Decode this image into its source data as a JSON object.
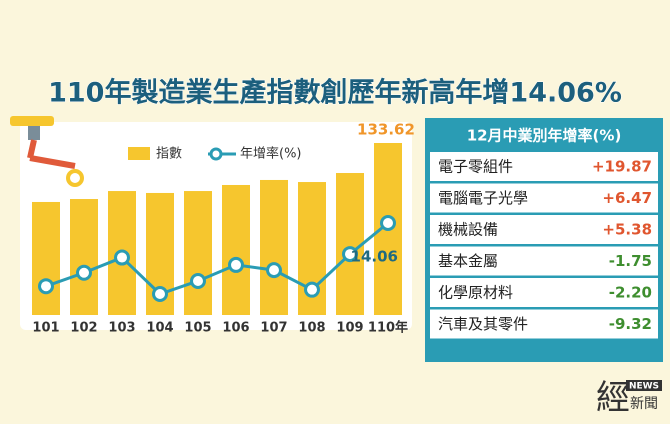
{
  "chart_data": {
    "type": "bar_line",
    "title": "110年製造業生產指數創歷年新高年增14.06%",
    "categories": [
      "101",
      "102",
      "103",
      "104",
      "105",
      "106",
      "107",
      "108",
      "109",
      "110年"
    ],
    "series": [
      {
        "name": "指數",
        "color": "#f6c62e",
        "values": [
          87.8,
          90.1,
          96.3,
          94.8,
          96.3,
          101.0,
          104.9,
          103.3,
          110.3,
          133.62
        ]
      },
      {
        "name": "年增率(%)",
        "color": "#2a9cb4",
        "values": [
          -0.5,
          2.6,
          6.1,
          -2.3,
          0.7,
          4.4,
          3.2,
          -1.3,
          6.9,
          14.06
        ]
      }
    ],
    "annotations": [
      {
        "series": 0,
        "index": 9,
        "text": "133.62",
        "color": "#f0962a"
      },
      {
        "series": 1,
        "index": 9,
        "text": "14.06",
        "color": "#1f6a80"
      }
    ]
  },
  "panel": {
    "title": "12月中業別年增率(%)",
    "rows": [
      [
        "電子零組件",
        "+19.87"
      ],
      [
        "電腦電子光學",
        "+6.47"
      ],
      [
        "機械設備",
        "+5.38"
      ],
      [
        "基本金屬",
        "-1.75"
      ],
      [
        "化學原材料",
        "-2.20"
      ],
      [
        "汽車及其零件",
        "-9.32"
      ]
    ]
  },
  "logo": {
    "main": "經",
    "tag": "NEWS",
    "sub": "新聞"
  }
}
